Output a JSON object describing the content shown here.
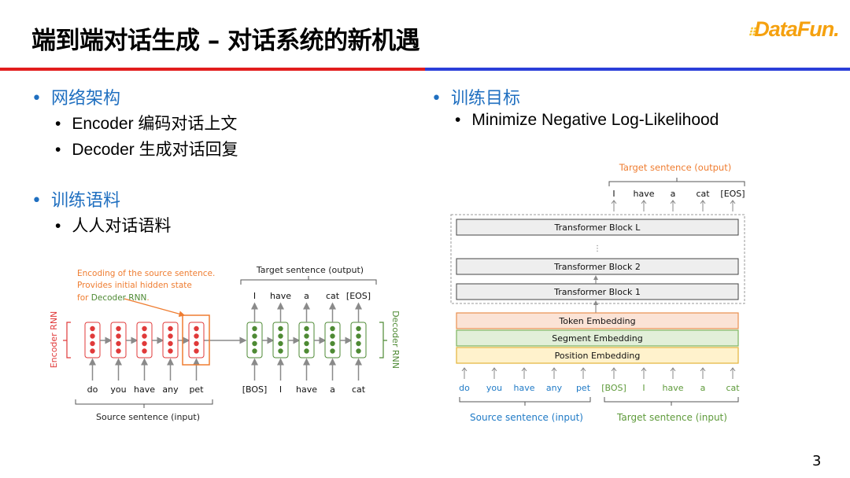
{
  "title": "端到端对话生成 – 对话系统的新机遇",
  "logo": "DataFun.",
  "left": {
    "sections": [
      {
        "heading": "网络架构",
        "items": [
          "Encoder 编码对话上文",
          "Decoder 生成对话回复"
        ]
      },
      {
        "heading": "训练语料",
        "items": [
          "人人对话语料"
        ]
      }
    ]
  },
  "right": {
    "sections": [
      {
        "heading": "训练目标",
        "items": [
          "Minimize Negative Log-Likelihood"
        ]
      }
    ]
  },
  "rnn_diagram": {
    "annotation": [
      "Encoding of the source sentence.",
      "Provides initial hidden state",
      "for ",
      "Decoder RNN",
      "."
    ],
    "encoder_label": "Encoder RNN",
    "decoder_label": "Decoder RNN",
    "target_label": "Target sentence (output)",
    "source_label": "Source sentence (input)",
    "source_words": [
      "do",
      "you",
      "have",
      "any",
      "pet"
    ],
    "decoder_inputs": [
      "[BOS]",
      "I",
      "have",
      "a",
      "cat"
    ],
    "decoder_outputs": [
      "I",
      "have",
      "a",
      "cat",
      "[EOS]"
    ],
    "colors": {
      "encoder": "#e03a3a",
      "decoder": "#4e8a34",
      "highlight": "#ef7d31"
    }
  },
  "transformer_diagram": {
    "target_output_label": "Target sentence (output)",
    "outputs": [
      "I",
      "have",
      "a",
      "cat",
      "[EOS]"
    ],
    "blocks": [
      "Transformer Block L",
      "⋮",
      "Transformer Block 2",
      "Transformer Block 1"
    ],
    "embeddings": [
      "Token Embedding",
      "Segment Embedding",
      "Position Embedding"
    ],
    "source_words": [
      "do",
      "you",
      "have",
      "any",
      "pet"
    ],
    "target_words": [
      "[BOS]",
      "I",
      "have",
      "a",
      "cat"
    ],
    "source_label": "Source sentence (input)",
    "target_input_label": "Target sentence (input)",
    "colors": {
      "source": "#1f7ac6",
      "target": "#5e9a3a",
      "output_label": "#ef7d31"
    }
  },
  "page_number": "3"
}
